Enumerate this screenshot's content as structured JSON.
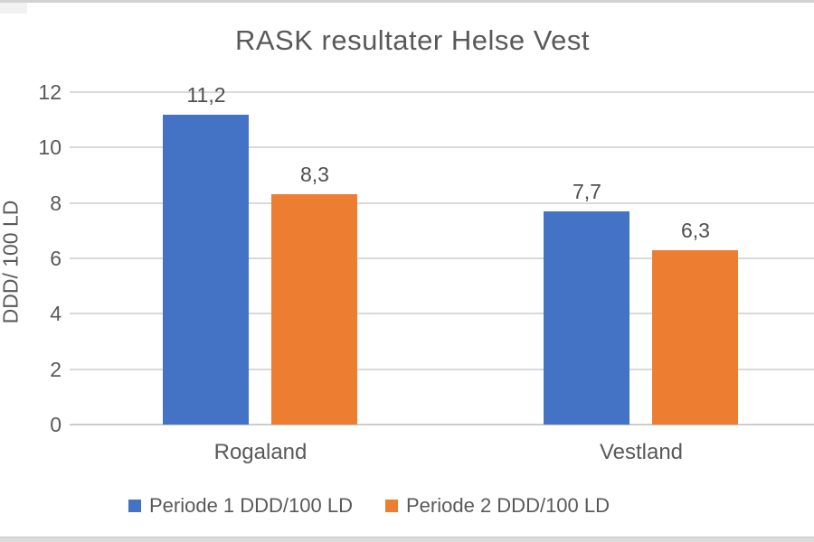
{
  "page": {
    "background": "#FFFFFF",
    "top_strip_color": "#D2D2D2",
    "bottom_strip_color": "#DCDCDC"
  },
  "chart_data": {
    "type": "bar",
    "title": "RASK resultater Helse Vest",
    "ylabel": "DDD/ 100 LD",
    "xlabel": "",
    "categories": [
      "Rogaland",
      "Vestland"
    ],
    "series": [
      {
        "name": "Periode 1 DDD/100 LD",
        "color": "#4472C4",
        "values": [
          11.2,
          7.7
        ],
        "value_labels": [
          "11,2",
          "7,7"
        ]
      },
      {
        "name": "Periode 2 DDD/100 LD",
        "color": "#ED7D31",
        "values": [
          8.3,
          6.3
        ],
        "value_labels": [
          "8,3",
          "6,3"
        ]
      }
    ],
    "ylim": [
      0,
      12
    ],
    "yticks": [
      0,
      2,
      4,
      6,
      8,
      10,
      12
    ],
    "ytick_labels": [
      "0",
      "2",
      "4",
      "6",
      "8",
      "10",
      "12"
    ],
    "grid": true,
    "gridline_color": "#D9D9D9",
    "baseline_color": "#CCCCCC",
    "text_color": "#595959",
    "legend_position": "bottom"
  }
}
